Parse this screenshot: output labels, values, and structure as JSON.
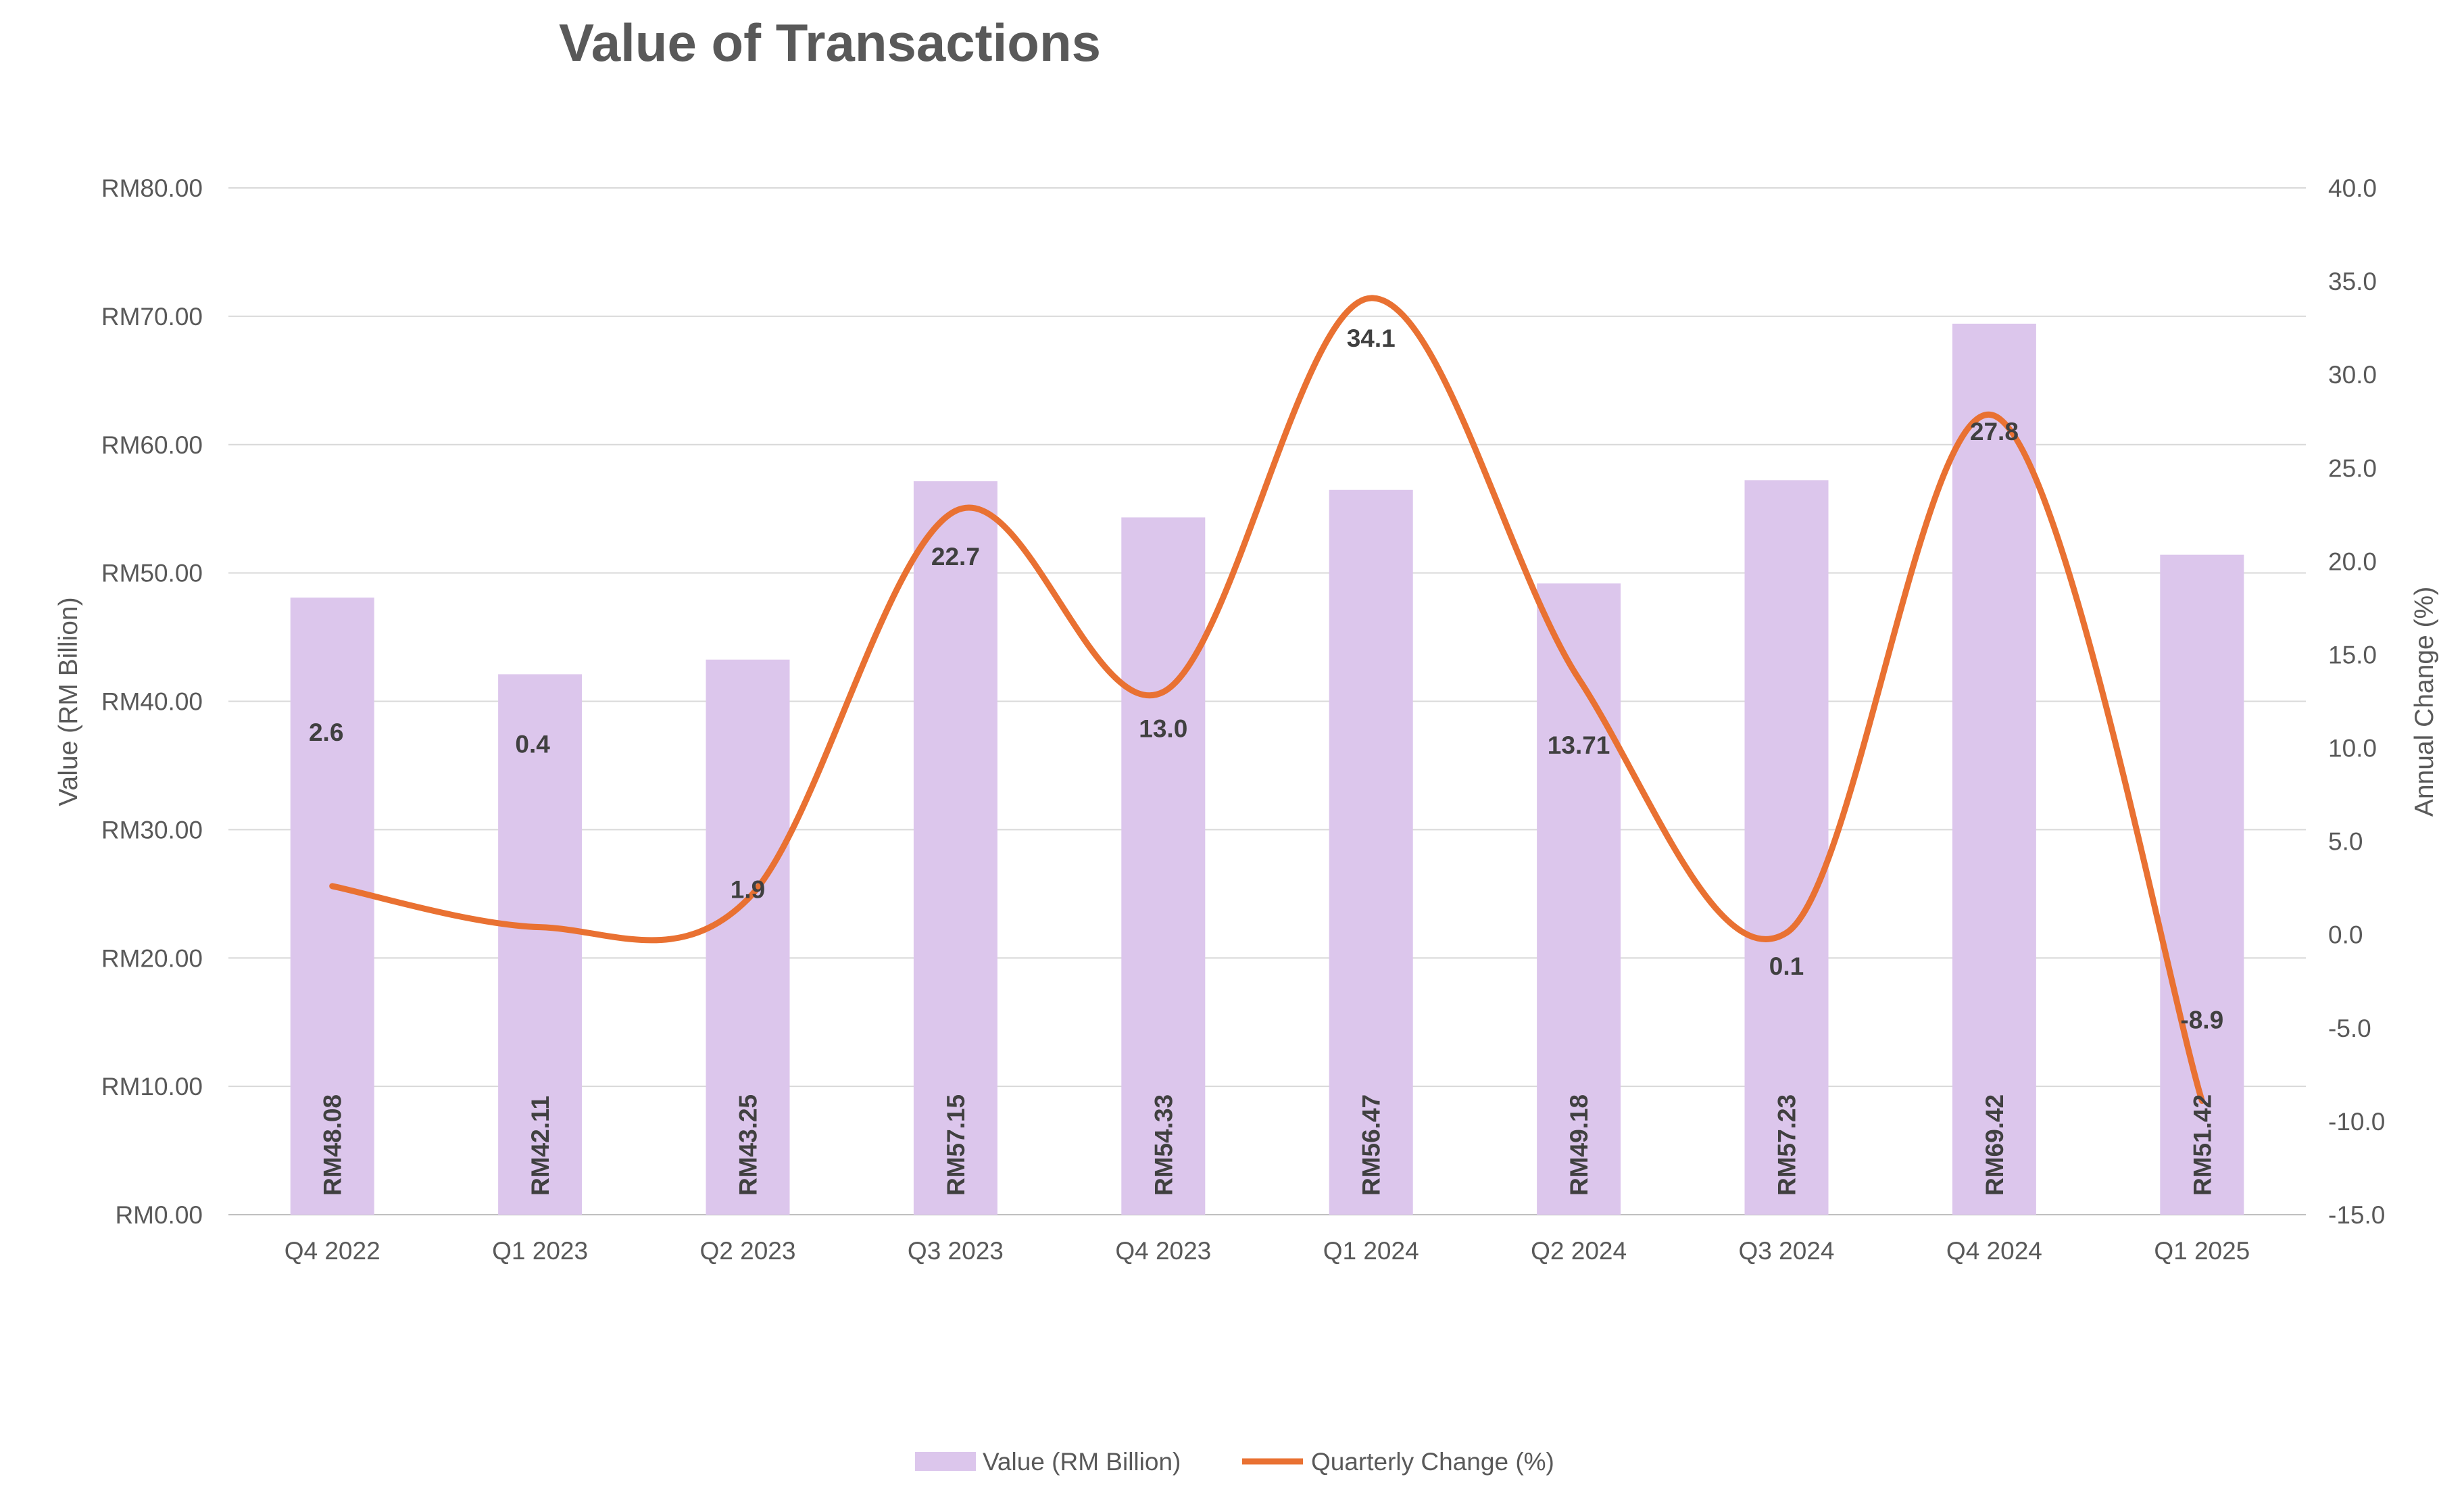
{
  "chart_data": {
    "type": "bar",
    "title": "Value of Transactions",
    "categories": [
      "Q4 2022",
      "Q1 2023",
      "Q2 2023",
      "Q3 2023",
      "Q4 2023",
      "Q1 2024",
      "Q2 2024",
      "Q3 2024",
      "Q4 2024",
      "Q1 2025"
    ],
    "series": [
      {
        "name": "Value (RM Billion)",
        "type": "bar",
        "axis": "left",
        "color": "#DCC6EC",
        "values": [
          48.08,
          42.11,
          43.25,
          57.15,
          54.33,
          56.47,
          49.18,
          57.23,
          69.42,
          51.42
        ],
        "data_labels": [
          "RM48.08",
          "RM42.11",
          "RM43.25",
          "RM57.15",
          "RM54.33",
          "RM56.47",
          "RM49.18",
          "RM57.23",
          "RM69.42",
          "RM51.42"
        ]
      },
      {
        "name": "Quarterly Change (%)",
        "type": "line",
        "smooth": true,
        "axis": "right",
        "color": "#E97132",
        "values": [
          2.6,
          0.4,
          1.9,
          22.7,
          13.0,
          34.1,
          13.71,
          0.1,
          27.8,
          -8.9
        ],
        "data_labels": [
          "2.6",
          "0.4",
          "1.9",
          "22.7",
          "13.0",
          "34.1",
          "13.71",
          "0.1",
          "27.8",
          "-8.9"
        ]
      }
    ],
    "ylabel": "Value (RM Billion)",
    "ylabel_right": "Annual Change (%)",
    "ylim": [
      0,
      80
    ],
    "y2lim": [
      -15,
      40
    ],
    "yticks": [
      "RM0.00",
      "RM10.00",
      "RM20.00",
      "RM30.00",
      "RM40.00",
      "RM50.00",
      "RM60.00",
      "RM70.00",
      "RM80.00"
    ],
    "y2ticks": [
      "-15.0",
      "-10.0",
      "-5.0",
      "0.0",
      "5.0",
      "10.0",
      "15.0",
      "20.0",
      "25.0",
      "30.0",
      "35.0",
      "40.0"
    ],
    "grid": true,
    "legend": "bottom"
  }
}
